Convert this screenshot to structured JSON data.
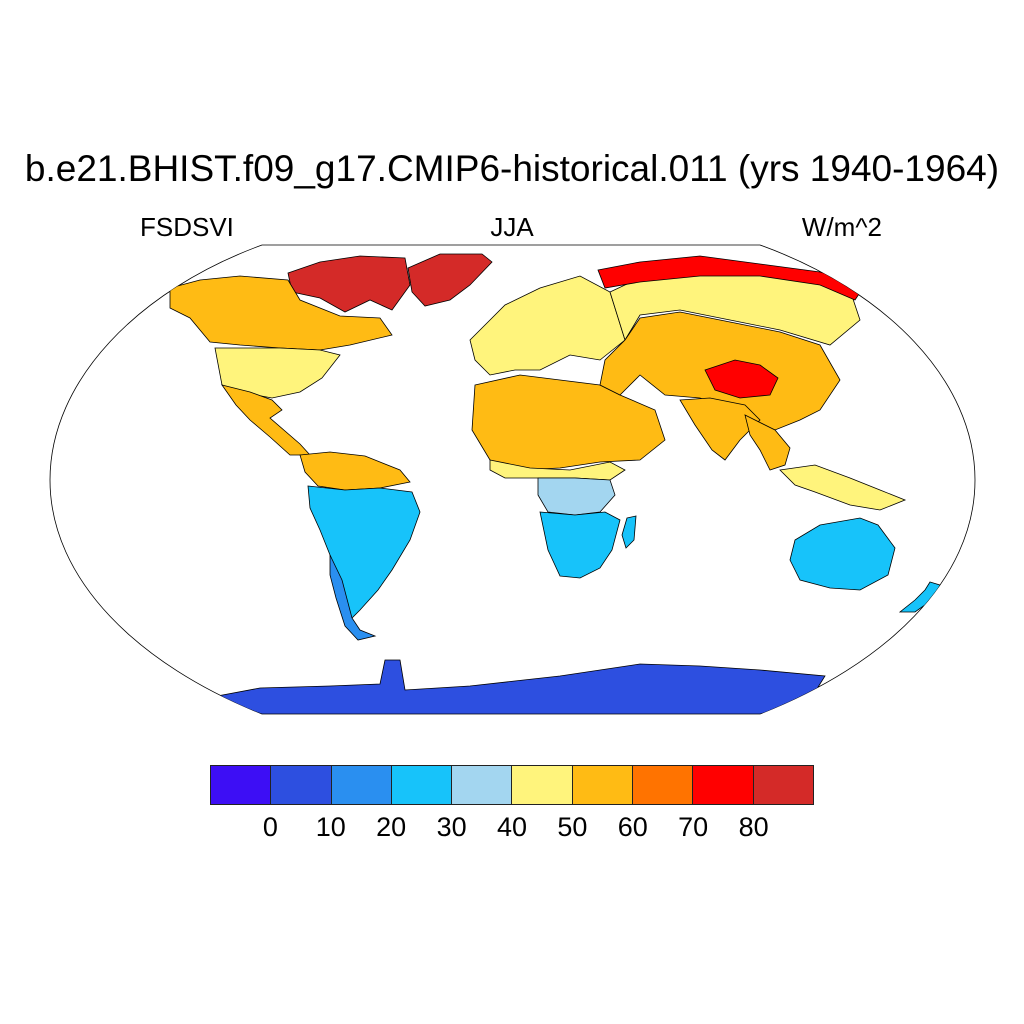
{
  "title": "b.e21.BHIST.f09_g17.CMIP6-historical.011 (yrs 1940-1964)",
  "left_label": "FSDSVI",
  "center_label": "JJA",
  "right_label": "W/m^2",
  "map": {
    "projection": "Robinson",
    "background": "#ffffff",
    "coastline_color": "#000000",
    "regions": [
      {
        "name": "Antarctica",
        "class": 1
      },
      {
        "name": "Greenland",
        "class": 9
      },
      {
        "name": "Canadian Arctic",
        "class": 9
      },
      {
        "name": "Canada",
        "class": 6
      },
      {
        "name": "United States",
        "class": 5
      },
      {
        "name": "Mexico and Central America",
        "class": 6
      },
      {
        "name": "Northern South America",
        "class": 6
      },
      {
        "name": "South America",
        "class": 3
      },
      {
        "name": "Patagonia",
        "class": 2
      },
      {
        "name": "Europe",
        "class": 5
      },
      {
        "name": "Sahara and Arabia",
        "class": 6
      },
      {
        "name": "Sahel",
        "class": 5
      },
      {
        "name": "Central Africa",
        "class": 4
      },
      {
        "name": "Southern Africa",
        "class": 3
      },
      {
        "name": "Madagascar",
        "class": 3
      },
      {
        "name": "Russia and Siberia",
        "class": 5
      },
      {
        "name": "Arctic Russia",
        "class": 8
      },
      {
        "name": "Central Asia",
        "class": 6
      },
      {
        "name": "Tibetan Plateau",
        "class": 8
      },
      {
        "name": "India",
        "class": 6
      },
      {
        "name": "Southeast Asia",
        "class": 6
      },
      {
        "name": "Maritime Continent",
        "class": 5
      },
      {
        "name": "Australia",
        "class": 3
      },
      {
        "name": "New Zealand",
        "class": 3
      }
    ]
  },
  "colorbar": {
    "colors": [
      "#3d0ef5",
      "#2d4fe0",
      "#2a8ff0",
      "#17c3fa",
      "#a3d6f0",
      "#fff47c",
      "#ffbb14",
      "#ff7300",
      "#ff0000",
      "#d42a28"
    ],
    "labels": [
      "0",
      "10",
      "20",
      "30",
      "40",
      "50",
      "60",
      "70",
      "80"
    ]
  }
}
